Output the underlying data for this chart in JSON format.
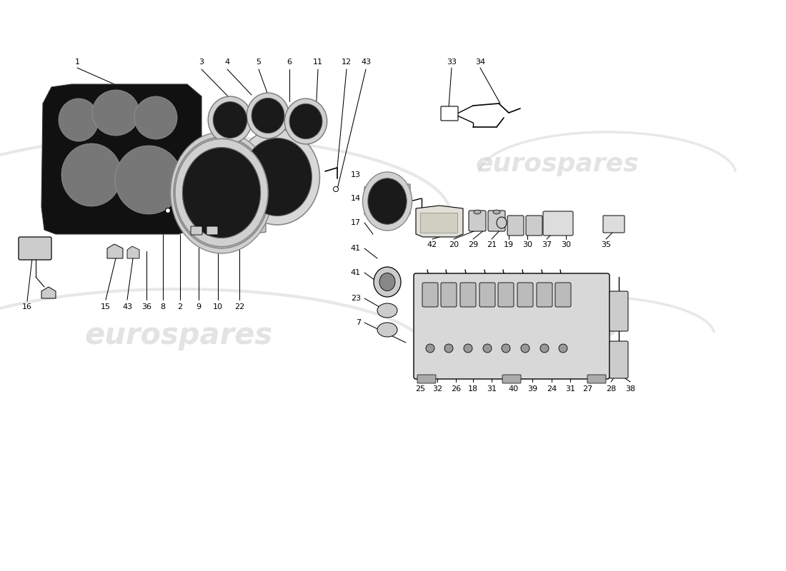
{
  "bg_color": "#ffffff",
  "line_color": "#000000",
  "watermark_color": "#cccccc",
  "watermark_text": "eurospares"
}
